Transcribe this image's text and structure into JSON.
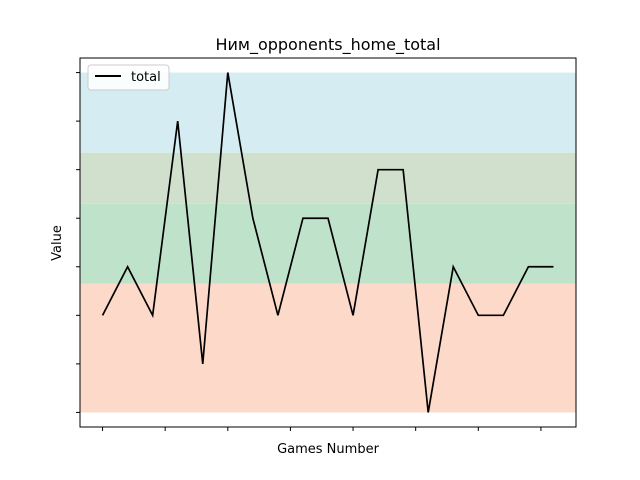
{
  "chart_data": {
    "type": "line",
    "title": "Ним_opponents_home_total",
    "xlabel": "Games Number",
    "ylabel": "Value",
    "legend": {
      "placement": "upper-left",
      "entries": [
        "total"
      ]
    },
    "series": [
      {
        "name": "total",
        "color": "#000000",
        "x": [
          0,
          1,
          2,
          3,
          4,
          5,
          6,
          7,
          8,
          9,
          10,
          11,
          12,
          13,
          14,
          15,
          16,
          17,
          18
        ],
        "values": [
          1,
          2,
          1,
          5,
          0,
          6,
          3,
          1,
          3,
          3,
          1,
          4,
          4,
          -1,
          2,
          1,
          1,
          2,
          2
        ]
      }
    ],
    "ylim": [
      -1.3,
      6.3
    ],
    "xlim": [
      -0.9,
      18.9
    ],
    "x_ticks": [
      0,
      2.5,
      5,
      7.5,
      10,
      12.5,
      15,
      17.5
    ],
    "y_ticks": [
      -1,
      0,
      1,
      2,
      3,
      4,
      5,
      6
    ],
    "tick_labels_visible": false,
    "grid": false,
    "bands": [
      {
        "from": -1,
        "to": 1.65,
        "color": "#fdd9ca"
      },
      {
        "from": 1.65,
        "to": 3.3,
        "color": "#bfe3ca"
      },
      {
        "from": 3.3,
        "to": 4.35,
        "color": "#d1dfcd"
      },
      {
        "from": 4.35,
        "to": 6,
        "color": "#d5edf2"
      }
    ]
  }
}
